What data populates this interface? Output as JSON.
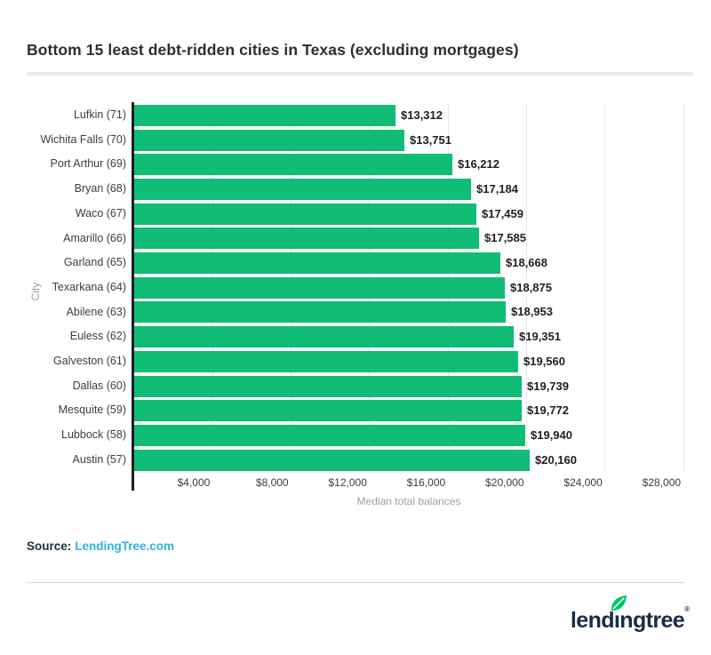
{
  "header": {
    "title": "Bottom 15 least debt-ridden cities in Texas (excluding mortgages)"
  },
  "chart_data": {
    "type": "bar",
    "orientation": "horizontal",
    "title": "Bottom 15 least debt-ridden cities in Texas (excluding mortgages)",
    "categories": [
      "Lufkin (71)",
      "Wichita Falls (70)",
      "Port Arthur (69)",
      "Bryan (68)",
      "Waco (67)",
      "Amarillo (66)",
      "Garland (65)",
      "Texarkana (64)",
      "Abilene (63)",
      "Euless (62)",
      "Galveston (61)",
      "Dallas (60)",
      "Mesquite (59)",
      "Lubbock (58)",
      "Austin (57)"
    ],
    "values": [
      13312,
      13751,
      16212,
      17184,
      17459,
      17585,
      18668,
      18875,
      18953,
      19351,
      19560,
      19739,
      19772,
      19940,
      20160
    ],
    "value_labels": [
      "$13,312",
      "$13,751",
      "$16,212",
      "$17,184",
      "$17,459",
      "$17,585",
      "$18,668",
      "$18,875",
      "$18,953",
      "$19,351",
      "$19,560",
      "$19,739",
      "$19,772",
      "$19,940",
      "$20,160"
    ],
    "xlabel": "Median total balances",
    "ylabel": "City",
    "xlim": [
      0,
      28000
    ],
    "x_tick_values": [
      4000,
      8000,
      12000,
      16000,
      20000,
      24000,
      28000
    ],
    "x_tick_labels": [
      "$4,000",
      "$8,000",
      "$12,000",
      "$16,000",
      "$20,000",
      "$24,000",
      "$28,000"
    ],
    "grid": true,
    "legend": "none",
    "bar_color": "#11bc74"
  },
  "source": {
    "label": "Source:",
    "link_text": "LendingTree.com"
  },
  "footer": {
    "logo_text": "lendingtree",
    "registered_mark": "®"
  },
  "colors": {
    "bar": "#11bc74",
    "leaf": "#00c66a",
    "logo_navy": "#1a2b49",
    "link_blue": "#2cb3e8",
    "gridline": "#e6e6e6",
    "header_divider": "#e9e9e9",
    "axis_line": "#1c1c1c",
    "title_text": "#2e2e2e",
    "tick_text": "#3c3c3c",
    "category_text": "#3d3d3d",
    "value_text": "#1f1f1f",
    "muted_text": "#9e9e9e"
  }
}
